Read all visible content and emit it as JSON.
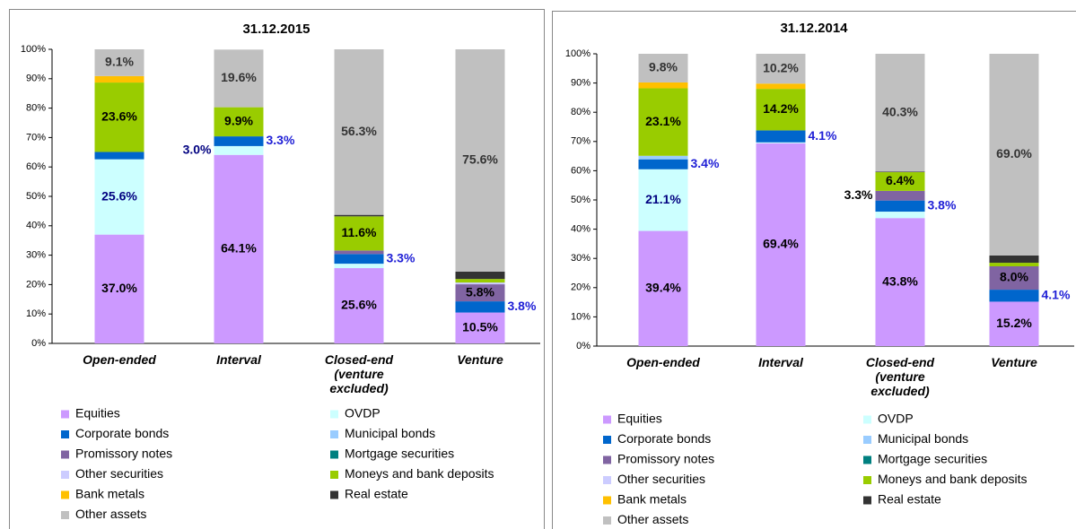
{
  "chart_data": [
    {
      "type": "stacked_bar",
      "title": "31.12.2015",
      "categories": [
        "Open-ended",
        "Interval",
        "Closed-end (venture excluded)",
        "Venture"
      ],
      "ylim": [
        0,
        100
      ],
      "yticks": [
        {
          "value": 0,
          "label": "0%"
        },
        {
          "value": 10,
          "label": "10%"
        },
        {
          "value": 20,
          "label": "20%"
        },
        {
          "value": 30,
          "label": "30%"
        },
        {
          "value": 40,
          "label": "40%"
        },
        {
          "value": 50,
          "label": "50%"
        },
        {
          "value": 60,
          "label": "60%"
        },
        {
          "value": 70,
          "label": "70%"
        },
        {
          "value": 80,
          "label": "80%"
        },
        {
          "value": 90,
          "label": "90%"
        },
        {
          "value": 100,
          "label": "100%"
        }
      ],
      "series": [
        {
          "name": "Equities",
          "color": "#cc99ff",
          "values": [
            37.0,
            64.1,
            25.6,
            10.5
          ],
          "value_labels": [
            "37.0%",
            "64.1%",
            "25.6%",
            "10.5%"
          ]
        },
        {
          "name": "OVDP",
          "color": "#ccffff",
          "values": [
            25.6,
            3.0,
            1.5,
            0
          ],
          "value_labels": [
            "25.6%",
            "3.0%",
            null,
            null
          ]
        },
        {
          "name": "Corporate bonds",
          "color": "#0066cc",
          "values": [
            2.5,
            3.3,
            3.3,
            3.8
          ],
          "value_labels": [
            null,
            "3.3%",
            "3.3%",
            "3.8%"
          ]
        },
        {
          "name": "Municipal bonds",
          "color": "#99ccff",
          "values": [
            0,
            0,
            0,
            0
          ],
          "value_labels": [
            null,
            null,
            null,
            null
          ]
        },
        {
          "name": "Promissory notes",
          "color": "#8064a2",
          "values": [
            0,
            0,
            1.2,
            5.8
          ],
          "value_labels": [
            null,
            null,
            null,
            "5.8%"
          ]
        },
        {
          "name": "Mortgage securities",
          "color": "#008080",
          "values": [
            0,
            0,
            0,
            0
          ],
          "value_labels": [
            null,
            null,
            null,
            null
          ]
        },
        {
          "name": "Other securities",
          "color": "#ccccff",
          "values": [
            0,
            0,
            0,
            0.6
          ],
          "value_labels": [
            null,
            null,
            null,
            null
          ]
        },
        {
          "name": "Moneys and bank deposits",
          "color": "#99cc00",
          "values": [
            23.6,
            9.9,
            11.6,
            1.2
          ],
          "value_labels": [
            "23.6%",
            "9.9%",
            "11.6%",
            null
          ]
        },
        {
          "name": "Bank metals",
          "color": "#ffc000",
          "values": [
            2.2,
            0,
            0,
            0
          ],
          "value_labels": [
            null,
            null,
            null,
            null
          ]
        },
        {
          "name": "Real estate",
          "color": "#333333",
          "values": [
            0,
            0,
            0.5,
            2.5
          ],
          "value_labels": [
            null,
            null,
            null,
            null
          ]
        },
        {
          "name": "Other assets",
          "color": "#c0c0c0",
          "values": [
            9.1,
            19.6,
            56.3,
            75.6
          ],
          "value_labels": [
            "9.1%",
            "19.6%",
            "56.3%",
            "75.6%"
          ]
        }
      ]
    },
    {
      "type": "stacked_bar",
      "title": "31.12.2014",
      "categories": [
        "Open-ended",
        "Interval",
        "Closed-end (venture excluded)",
        "Venture"
      ],
      "ylim": [
        0,
        100
      ],
      "yticks": [
        {
          "value": 0,
          "label": "0%"
        },
        {
          "value": 10,
          "label": "10%"
        },
        {
          "value": 20,
          "label": "20%"
        },
        {
          "value": 30,
          "label": "30%"
        },
        {
          "value": 40,
          "label": "40%"
        },
        {
          "value": 50,
          "label": "50%"
        },
        {
          "value": 60,
          "label": "60%"
        },
        {
          "value": 70,
          "label": "70%"
        },
        {
          "value": 80,
          "label": "80%"
        },
        {
          "value": 90,
          "label": "90%"
        },
        {
          "value": 100,
          "label": "100%"
        }
      ],
      "series": [
        {
          "name": "Equities",
          "color": "#cc99ff",
          "values": [
            39.4,
            69.4,
            43.8,
            15.2
          ],
          "value_labels": [
            "39.4%",
            "69.4%",
            "43.8%",
            "15.2%"
          ]
        },
        {
          "name": "OVDP",
          "color": "#ccffff",
          "values": [
            21.1,
            0.3,
            2.2,
            0
          ],
          "value_labels": [
            "21.1%",
            null,
            null,
            null
          ]
        },
        {
          "name": "Corporate bonds",
          "color": "#0066cc",
          "values": [
            3.4,
            4.1,
            3.8,
            4.1
          ],
          "value_labels": [
            "3.4%",
            "4.1%",
            "3.8%",
            "4.1%"
          ]
        },
        {
          "name": "Municipal bonds",
          "color": "#99ccff",
          "values": [
            1.2,
            0,
            0,
            0
          ],
          "value_labels": [
            null,
            null,
            null,
            null
          ]
        },
        {
          "name": "Promissory notes",
          "color": "#8064a2",
          "values": [
            0,
            0,
            3.3,
            8.0
          ],
          "value_labels": [
            null,
            null,
            "3.3%",
            "8.0%"
          ]
        },
        {
          "name": "Mortgage securities",
          "color": "#008080",
          "values": [
            0,
            0,
            0,
            0
          ],
          "value_labels": [
            null,
            null,
            null,
            null
          ]
        },
        {
          "name": "Other securities",
          "color": "#ccccff",
          "values": [
            0,
            0,
            0,
            0
          ],
          "value_labels": [
            null,
            null,
            null,
            null
          ]
        },
        {
          "name": "Moneys and bank deposits",
          "color": "#99cc00",
          "values": [
            23.1,
            14.2,
            6.4,
            1.2
          ],
          "value_labels": [
            "23.1%",
            "14.2%",
            "6.4%",
            null
          ]
        },
        {
          "name": "Bank metals",
          "color": "#ffc000",
          "values": [
            2.0,
            1.8,
            0,
            0
          ],
          "value_labels": [
            null,
            null,
            null,
            null
          ]
        },
        {
          "name": "Real estate",
          "color": "#333333",
          "values": [
            0,
            0,
            0.2,
            2.5
          ],
          "value_labels": [
            null,
            null,
            null,
            null
          ]
        },
        {
          "name": "Other assets",
          "color": "#c0c0c0",
          "values": [
            9.8,
            10.2,
            40.3,
            69.0
          ],
          "value_labels": [
            "9.8%",
            "10.2%",
            "40.3%",
            "69.0%"
          ]
        }
      ]
    }
  ]
}
